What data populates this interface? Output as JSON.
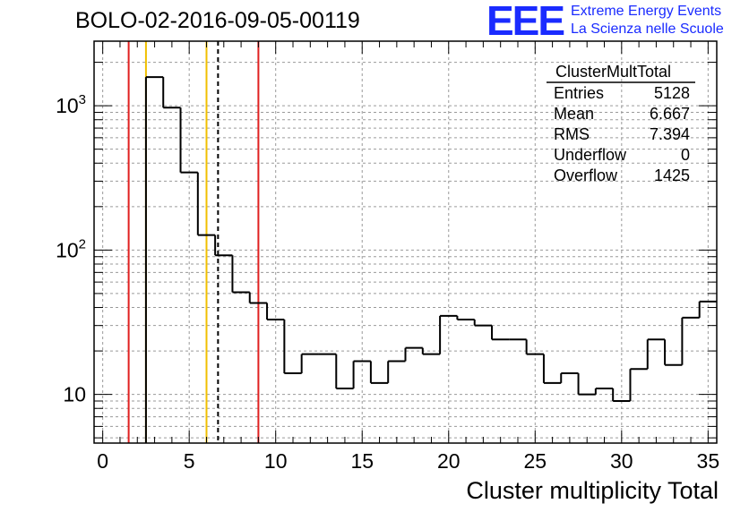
{
  "title": "BOLO-02-2016-09-05-00119",
  "logo": {
    "text": "EEE",
    "line1": "Extreme Energy Events",
    "line2": "La Scienza nelle Scuole",
    "color": "#1a2bff"
  },
  "stats": {
    "name": "ClusterMultTotal",
    "rows": [
      {
        "key": "Entries",
        "value": "5128"
      },
      {
        "key": "Mean",
        "value": "6.667"
      },
      {
        "key": "RMS",
        "value": "7.394"
      },
      {
        "key": "Underflow",
        "value": "0"
      },
      {
        "key": "Overflow",
        "value": "1425"
      }
    ]
  },
  "chart_data": {
    "type": "histogram",
    "scale_y": "log",
    "xlabel": "Cluster multiplicity Total",
    "ylabel": "",
    "xlim": [
      -0.5,
      35.5
    ],
    "ylim": [
      4.6,
      2800
    ],
    "grid": true,
    "x_ticks": [
      0,
      5,
      10,
      15,
      20,
      25,
      30,
      35
    ],
    "y_tick_labels": [
      {
        "value": 10,
        "base": "10",
        "exp": ""
      },
      {
        "value": 100,
        "base": "10",
        "exp": "2"
      },
      {
        "value": 1000,
        "base": "10",
        "exp": "3"
      }
    ],
    "bins": [
      {
        "x0": 2.5,
        "x1": 3.5,
        "y": 1580
      },
      {
        "x0": 3.5,
        "x1": 4.5,
        "y": 970
      },
      {
        "x0": 4.5,
        "x1": 5.5,
        "y": 345
      },
      {
        "x0": 5.5,
        "x1": 6.5,
        "y": 127
      },
      {
        "x0": 6.5,
        "x1": 7.5,
        "y": 92
      },
      {
        "x0": 7.5,
        "x1": 8.5,
        "y": 51
      },
      {
        "x0": 8.5,
        "x1": 9.5,
        "y": 43
      },
      {
        "x0": 9.5,
        "x1": 10.5,
        "y": 33
      },
      {
        "x0": 10.5,
        "x1": 11.5,
        "y": 14
      },
      {
        "x0": 11.5,
        "x1": 12.5,
        "y": 19
      },
      {
        "x0": 12.5,
        "x1": 13.5,
        "y": 19
      },
      {
        "x0": 13.5,
        "x1": 14.5,
        "y": 11
      },
      {
        "x0": 14.5,
        "x1": 15.5,
        "y": 17
      },
      {
        "x0": 15.5,
        "x1": 16.5,
        "y": 12
      },
      {
        "x0": 16.5,
        "x1": 17.5,
        "y": 17
      },
      {
        "x0": 17.5,
        "x1": 18.5,
        "y": 21
      },
      {
        "x0": 18.5,
        "x1": 19.5,
        "y": 19
      },
      {
        "x0": 19.5,
        "x1": 20.5,
        "y": 35
      },
      {
        "x0": 20.5,
        "x1": 21.5,
        "y": 33
      },
      {
        "x0": 21.5,
        "x1": 22.5,
        "y": 30
      },
      {
        "x0": 22.5,
        "x1": 23.5,
        "y": 24
      },
      {
        "x0": 23.5,
        "x1": 24.5,
        "y": 24
      },
      {
        "x0": 24.5,
        "x1": 25.5,
        "y": 19
      },
      {
        "x0": 25.5,
        "x1": 26.5,
        "y": 12
      },
      {
        "x0": 26.5,
        "x1": 27.5,
        "y": 14
      },
      {
        "x0": 27.5,
        "x1": 28.5,
        "y": 10
      },
      {
        "x0": 28.5,
        "x1": 29.5,
        "y": 11
      },
      {
        "x0": 29.5,
        "x1": 30.5,
        "y": 9
      },
      {
        "x0": 30.5,
        "x1": 31.5,
        "y": 15
      },
      {
        "x0": 31.5,
        "x1": 32.5,
        "y": 24
      },
      {
        "x0": 32.5,
        "x1": 33.5,
        "y": 16
      },
      {
        "x0": 33.5,
        "x1": 34.5,
        "y": 34
      },
      {
        "x0": 34.5,
        "x1": 35.5,
        "y": 44
      }
    ],
    "vertical_lines": [
      {
        "x": 1.5,
        "color": "#e02020",
        "style": "solid"
      },
      {
        "x": 2.5,
        "color": "#f0c000",
        "style": "solid"
      },
      {
        "x": 6.0,
        "color": "#f0c000",
        "style": "solid"
      },
      {
        "x": 6.667,
        "color": "#000000",
        "style": "dashed"
      },
      {
        "x": 9.0,
        "color": "#e02020",
        "style": "solid"
      }
    ]
  }
}
